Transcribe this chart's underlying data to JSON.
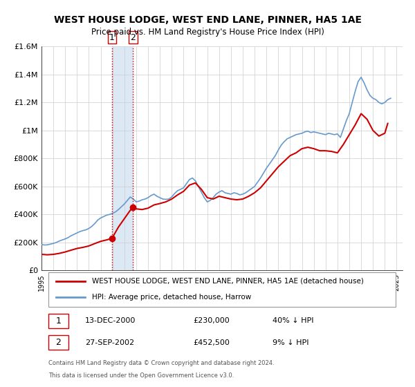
{
  "title": "WEST HOUSE LODGE, WEST END LANE, PINNER, HA5 1AE",
  "subtitle": "Price paid vs. HM Land Registry's House Price Index (HPI)",
  "legend_label_red": "WEST HOUSE LODGE, WEST END LANE, PINNER, HA5 1AE (detached house)",
  "legend_label_blue": "HPI: Average price, detached house, Harrow",
  "footnote1": "Contains HM Land Registry data © Crown copyright and database right 2024.",
  "footnote2": "This data is licensed under the Open Government Licence v3.0.",
  "transaction1_date": "13-DEC-2000",
  "transaction1_price": "£230,000",
  "transaction1_hpi": "40% ↓ HPI",
  "transaction2_date": "27-SEP-2002",
  "transaction2_price": "£452,500",
  "transaction2_hpi": "9% ↓ HPI",
  "ylim": [
    0,
    1600000
  ],
  "yticks": [
    0,
    200000,
    400000,
    600000,
    800000,
    1000000,
    1200000,
    1400000,
    1600000
  ],
  "ytick_labels": [
    "£0",
    "£200K",
    "£400K",
    "£600K",
    "£800K",
    "£1M",
    "£1.2M",
    "£1.4M",
    "£1.6M"
  ],
  "xmin": 1995.0,
  "xmax": 2025.5,
  "transaction1_x": 2000.96,
  "transaction1_y": 230000,
  "transaction2_x": 2002.74,
  "transaction2_y": 452500,
  "shade_x1": 2000.96,
  "shade_x2": 2002.74,
  "vline1_x": 2000.96,
  "vline2_x": 2002.74,
  "red_color": "#cc0000",
  "blue_color": "#6699cc",
  "shade_color": "#dde8f5",
  "grid_color": "#cccccc",
  "background_color": "#ffffff",
  "hpi_data": {
    "years": [
      1995.0,
      1995.25,
      1995.5,
      1995.75,
      1996.0,
      1996.25,
      1996.5,
      1996.75,
      1997.0,
      1997.25,
      1997.5,
      1997.75,
      1998.0,
      1998.25,
      1998.5,
      1998.75,
      1999.0,
      1999.25,
      1999.5,
      1999.75,
      2000.0,
      2000.25,
      2000.5,
      2000.75,
      2001.0,
      2001.25,
      2001.5,
      2001.75,
      2002.0,
      2002.25,
      2002.5,
      2002.75,
      2003.0,
      2003.25,
      2003.5,
      2003.75,
      2004.0,
      2004.25,
      2004.5,
      2004.75,
      2005.0,
      2005.25,
      2005.5,
      2005.75,
      2006.0,
      2006.25,
      2006.5,
      2006.75,
      2007.0,
      2007.25,
      2007.5,
      2007.75,
      2008.0,
      2008.25,
      2008.5,
      2008.75,
      2009.0,
      2009.25,
      2009.5,
      2009.75,
      2010.0,
      2010.25,
      2010.5,
      2010.75,
      2011.0,
      2011.25,
      2011.5,
      2011.75,
      2012.0,
      2012.25,
      2012.5,
      2012.75,
      2013.0,
      2013.25,
      2013.5,
      2013.75,
      2014.0,
      2014.25,
      2014.5,
      2014.75,
      2015.0,
      2015.25,
      2015.5,
      2015.75,
      2016.0,
      2016.25,
      2016.5,
      2016.75,
      2017.0,
      2017.25,
      2017.5,
      2017.75,
      2018.0,
      2018.25,
      2018.5,
      2018.75,
      2019.0,
      2019.25,
      2019.5,
      2019.75,
      2020.0,
      2020.25,
      2020.5,
      2020.75,
      2021.0,
      2021.25,
      2021.5,
      2021.75,
      2022.0,
      2022.25,
      2022.5,
      2022.75,
      2023.0,
      2023.25,
      2023.5,
      2023.75,
      2024.0,
      2024.25,
      2024.5
    ],
    "values": [
      185000,
      182000,
      183000,
      188000,
      193000,
      200000,
      210000,
      218000,
      225000,
      235000,
      248000,
      258000,
      268000,
      278000,
      285000,
      290000,
      300000,
      315000,
      335000,
      360000,
      375000,
      385000,
      395000,
      400000,
      408000,
      418000,
      435000,
      455000,
      475000,
      500000,
      525000,
      510000,
      490000,
      495000,
      505000,
      510000,
      520000,
      535000,
      545000,
      530000,
      520000,
      510000,
      508000,
      510000,
      525000,
      550000,
      570000,
      580000,
      590000,
      620000,
      650000,
      660000,
      640000,
      600000,
      560000,
      520000,
      490000,
      500000,
      520000,
      545000,
      560000,
      570000,
      555000,
      550000,
      545000,
      555000,
      550000,
      540000,
      545000,
      555000,
      570000,
      585000,
      600000,
      630000,
      660000,
      695000,
      730000,
      760000,
      790000,
      820000,
      860000,
      895000,
      920000,
      940000,
      950000,
      960000,
      970000,
      975000,
      980000,
      990000,
      995000,
      985000,
      990000,
      985000,
      980000,
      975000,
      970000,
      980000,
      975000,
      970000,
      975000,
      950000,
      1010000,
      1070000,
      1120000,
      1200000,
      1280000,
      1350000,
      1380000,
      1340000,
      1290000,
      1250000,
      1230000,
      1220000,
      1200000,
      1190000,
      1200000,
      1220000,
      1230000
    ]
  },
  "red_data": {
    "years": [
      1995.0,
      1995.5,
      1996.0,
      1996.5,
      1997.0,
      1997.5,
      1998.0,
      1998.5,
      1999.0,
      1999.5,
      2000.0,
      2000.5,
      2000.96,
      2001.5,
      2002.0,
      2002.5,
      2002.74,
      2003.0,
      2003.5,
      2004.0,
      2004.5,
      2005.0,
      2005.5,
      2006.0,
      2006.5,
      2007.0,
      2007.5,
      2008.0,
      2008.5,
      2009.0,
      2009.5,
      2010.0,
      2010.5,
      2011.0,
      2011.5,
      2012.0,
      2012.5,
      2013.0,
      2013.5,
      2014.0,
      2014.5,
      2015.0,
      2015.5,
      2016.0,
      2016.5,
      2017.0,
      2017.5,
      2018.0,
      2018.5,
      2019.0,
      2019.5,
      2020.0,
      2020.5,
      2021.0,
      2021.5,
      2022.0,
      2022.5,
      2023.0,
      2023.5,
      2024.0,
      2024.25
    ],
    "values": [
      115000,
      112000,
      115000,
      122000,
      132000,
      145000,
      157000,
      165000,
      175000,
      192000,
      208000,
      218000,
      230000,
      310000,
      370000,
      430000,
      452500,
      440000,
      435000,
      445000,
      468000,
      478000,
      490000,
      510000,
      540000,
      565000,
      610000,
      625000,
      580000,
      520000,
      510000,
      530000,
      520000,
      510000,
      505000,
      510000,
      530000,
      555000,
      590000,
      640000,
      690000,
      740000,
      780000,
      820000,
      840000,
      870000,
      880000,
      870000,
      855000,
      855000,
      850000,
      840000,
      900000,
      970000,
      1040000,
      1120000,
      1080000,
      1000000,
      960000,
      980000,
      1050000
    ]
  }
}
